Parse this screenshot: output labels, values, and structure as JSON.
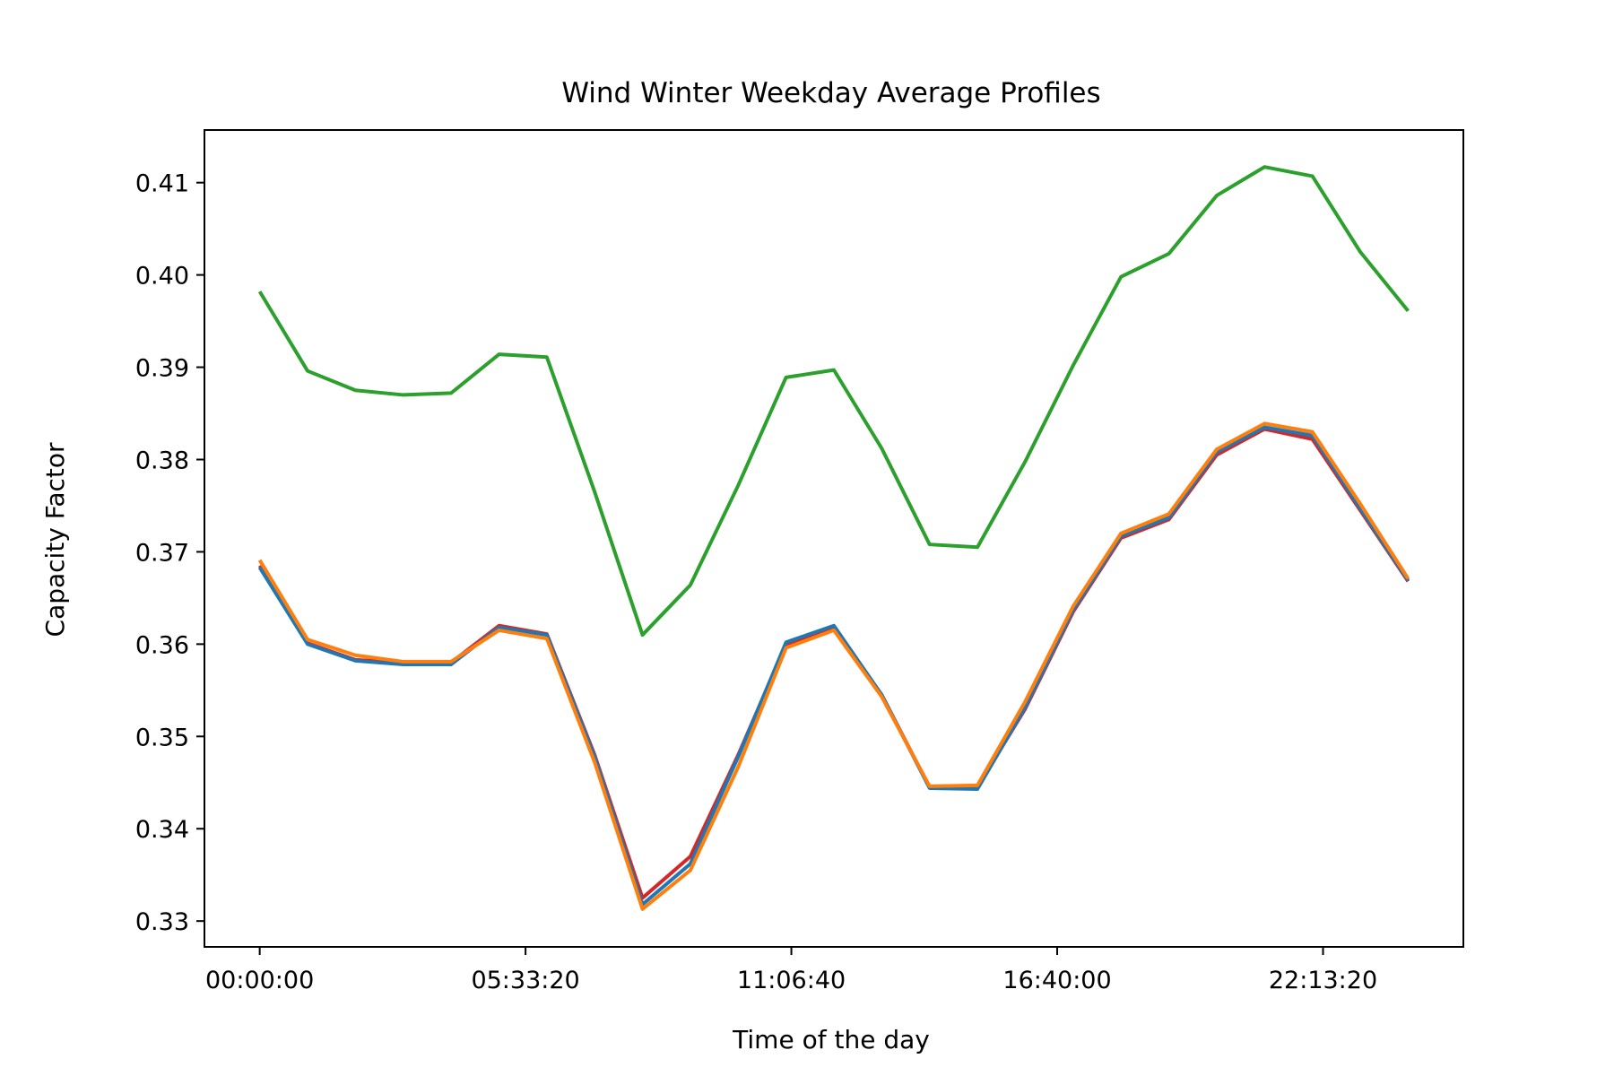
{
  "chart_data": {
    "type": "line",
    "title": "Wind Winter Weekday Average Profiles",
    "xlabel": "Time of the day",
    "ylabel": "Capacity Factor",
    "x": [
      "00:00:00",
      "01:00:00",
      "02:00:00",
      "03:00:00",
      "04:00:00",
      "05:00:00",
      "06:00:00",
      "07:00:00",
      "08:00:00",
      "09:00:00",
      "10:00:00",
      "11:00:00",
      "12:00:00",
      "13:00:00",
      "14:00:00",
      "15:00:00",
      "16:00:00",
      "17:00:00",
      "18:00:00",
      "19:00:00",
      "20:00:00",
      "21:00:00",
      "22:00:00",
      "23:00:00",
      "24:00:00"
    ],
    "xticks": [
      "00:00:00",
      "05:33:20",
      "11:06:40",
      "16:40:00",
      "22:13:20"
    ],
    "xlim_hours": [
      -1.155,
      25.155
    ],
    "yticks": [
      "0.33",
      "0.34",
      "0.35",
      "0.36",
      "0.37",
      "0.38",
      "0.39",
      "0.40",
      "0.41"
    ],
    "ylim": [
      0.3272,
      0.4157
    ],
    "grid": false,
    "legend": "none",
    "series": [
      {
        "color": "#d62728",
        "values": [
          0.3685,
          0.3601,
          0.3583,
          0.358,
          0.358,
          0.362,
          0.3611,
          0.348,
          0.3325,
          0.337,
          0.348,
          0.36,
          0.3617,
          0.3545,
          0.3445,
          0.3445,
          0.353,
          0.3635,
          0.3715,
          0.3735,
          0.3805,
          0.3833,
          0.3822,
          0.3745,
          0.3668
        ]
      },
      {
        "color": "#1f77b4",
        "values": [
          0.3683,
          0.36,
          0.3582,
          0.3578,
          0.3578,
          0.3618,
          0.361,
          0.3478,
          0.3318,
          0.3362,
          0.3478,
          0.3602,
          0.362,
          0.3545,
          0.3444,
          0.3443,
          0.3532,
          0.3637,
          0.3717,
          0.3737,
          0.3808,
          0.3835,
          0.3826,
          0.3747,
          0.3669
        ]
      },
      {
        "color": "#2ca02c",
        "values": [
          0.3982,
          0.3896,
          0.3875,
          0.387,
          0.3872,
          0.3914,
          0.3911,
          0.3765,
          0.361,
          0.3664,
          0.3772,
          0.3889,
          0.3897,
          0.3812,
          0.3708,
          0.3705,
          0.3798,
          0.3902,
          0.3998,
          0.4023,
          0.4086,
          0.4117,
          0.4107,
          0.4025,
          0.3961
        ]
      },
      {
        "color": "#ff7f0e",
        "values": [
          0.3691,
          0.3605,
          0.3588,
          0.3581,
          0.3581,
          0.3615,
          0.3606,
          0.3472,
          0.3313,
          0.3355,
          0.3467,
          0.3596,
          0.3615,
          0.3543,
          0.3446,
          0.3447,
          0.3538,
          0.3641,
          0.372,
          0.3741,
          0.3811,
          0.3839,
          0.383,
          0.3752,
          0.3671
        ]
      }
    ]
  }
}
